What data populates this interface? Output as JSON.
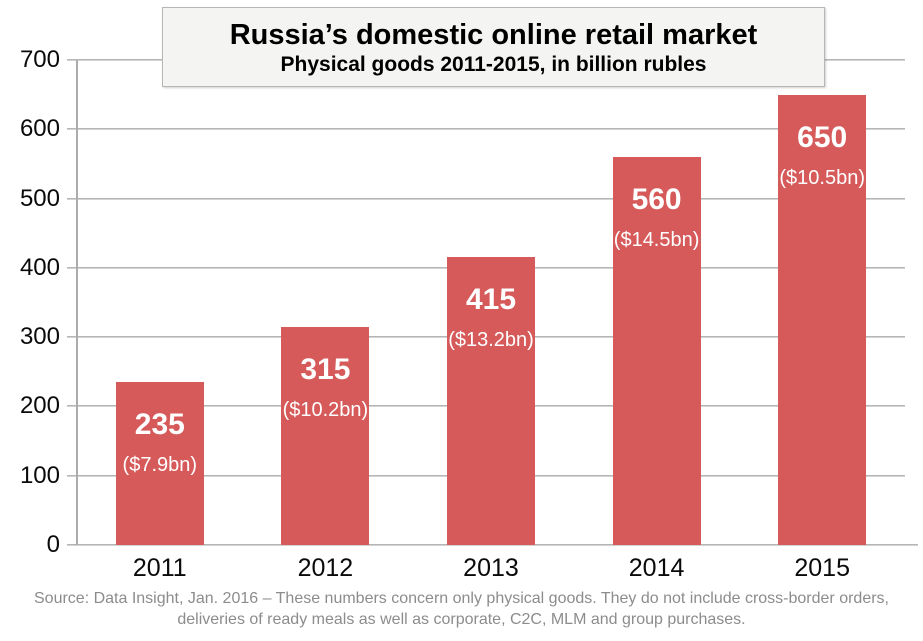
{
  "chart_data": {
    "type": "bar",
    "title": "Russia’s domestic online retail market",
    "subtitle": "Physical goods 2011-2015, in billion rubles",
    "categories": [
      "2011",
      "2012",
      "2013",
      "2014",
      "2015"
    ],
    "values": [
      235,
      315,
      415,
      560,
      650
    ],
    "bar_sublabels": [
      "($7.9bn)",
      "($10.2bn)",
      "($13.2bn)",
      "($14.5bn)",
      "($10.5bn)"
    ],
    "y_ticks": [
      0,
      100,
      200,
      300,
      400,
      500,
      600,
      700
    ],
    "ylim": [
      0,
      700
    ],
    "grid": true,
    "legend": "none",
    "xlabel": "",
    "ylabel": "",
    "colors": {
      "bar": "#D65A5A",
      "bar_label": "#FFFFFF",
      "gridline": "#ACACAC",
      "axis": "#ABABAB",
      "tick_text": "#0A0A0A",
      "title_box_bg": "#F4F4F2",
      "title_box_border": "#B6B6B6",
      "source_text": "#8C8C8C"
    }
  },
  "source": {
    "line1": "Source: Data Insight, Jan. 2016 – These numbers concern only physical goods. They do not include cross-border orders,",
    "line2": "deliveries of ready meals as well as corporate, C2C, MLM and group purchases."
  }
}
